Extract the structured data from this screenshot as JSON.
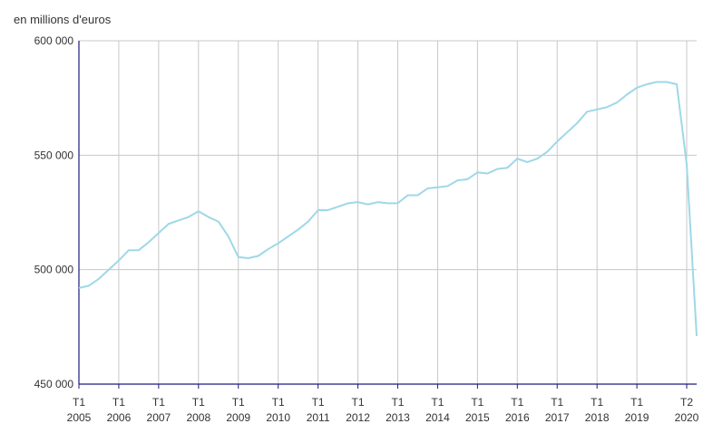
{
  "chart_data": {
    "type": "line",
    "unit_label": "en millions d'euros",
    "ylim": [
      450000,
      600000
    ],
    "yticks": [
      {
        "value": 600000,
        "label": "600 000"
      },
      {
        "value": 550000,
        "label": "550 000"
      },
      {
        "value": 500000,
        "label": "500 000"
      },
      {
        "value": 450000,
        "label": "450 000"
      }
    ],
    "xticks": [
      {
        "index": 0,
        "line1": "T1",
        "line2": "2005"
      },
      {
        "index": 4,
        "line1": "T1",
        "line2": "2006"
      },
      {
        "index": 8,
        "line1": "T1",
        "line2": "2007"
      },
      {
        "index": 12,
        "line1": "T1",
        "line2": "2008"
      },
      {
        "index": 16,
        "line1": "T1",
        "line2": "2009"
      },
      {
        "index": 20,
        "line1": "T1",
        "line2": "2010"
      },
      {
        "index": 24,
        "line1": "T1",
        "line2": "2011"
      },
      {
        "index": 28,
        "line1": "T1",
        "line2": "2012"
      },
      {
        "index": 32,
        "line1": "T1",
        "line2": "2013"
      },
      {
        "index": 36,
        "line1": "T1",
        "line2": "2014"
      },
      {
        "index": 40,
        "line1": "T1",
        "line2": "2015"
      },
      {
        "index": 44,
        "line1": "T1",
        "line2": "2016"
      },
      {
        "index": 48,
        "line1": "T1",
        "line2": "2017"
      },
      {
        "index": 52,
        "line1": "T1",
        "line2": "2018"
      },
      {
        "index": 56,
        "line1": "T1",
        "line2": "2019"
      },
      {
        "index": 61,
        "line1": "T2",
        "line2": "2020"
      }
    ],
    "grid": true,
    "line_color": "#9ed8e8",
    "grid_color": "#c8c8c8",
    "axis_color": "#1a1a80",
    "series": [
      {
        "values": [
          492000,
          493000,
          496000,
          500000,
          504000,
          508500,
          508500,
          512000,
          516000,
          520000,
          521500,
          523000,
          525500,
          523000,
          521000,
          514500,
          505500,
          505000,
          506000,
          509000,
          511500,
          514500,
          517500,
          521000,
          526000,
          526000,
          527500,
          529000,
          529500,
          528500,
          529500,
          529000,
          529000,
          532500,
          532500,
          535500,
          536000,
          536500,
          539000,
          539500,
          542500,
          542000,
          544000,
          544500,
          548500,
          547000,
          548500,
          551500,
          556000,
          560000,
          564000,
          569000,
          570000,
          571000,
          573000,
          576500,
          579500,
          581000,
          582000,
          582000,
          581000,
          546000,
          471000
        ]
      }
    ]
  }
}
